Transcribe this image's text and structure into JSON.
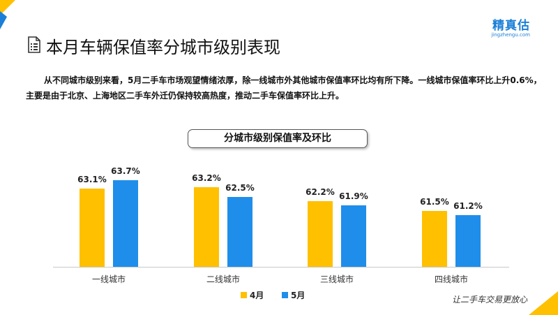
{
  "logo": {
    "main": "精真估",
    "sub": "jingzhengu.com"
  },
  "page_title": "本月车辆保值率分城市级别表现",
  "description": "从不同城市级别来看，5月二手车市场观望情绪浓厚，除一线城市外其他城市保值率环比均有所下降。一线城市保值率环比上升0.6%，主要是由于北京、上海地区二手车外迁仍保持较高热度，推动二手车保值率环比上升。",
  "slogan": "让二手车交易更放心",
  "colors": {
    "april": "#FFC000",
    "may": "#1F8EEA",
    "accent_blue": "#1a7fd8",
    "accent_yellow": "#FFC000"
  },
  "chart_data": {
    "type": "bar",
    "title": "分城市级别保值率及环比",
    "categories": [
      "一线城市",
      "二线城市",
      "三线城市",
      "四线城市"
    ],
    "series": [
      {
        "name": "4月",
        "values": [
          63.1,
          63.2,
          62.2,
          61.5
        ],
        "labels": [
          "63.1%",
          "63.2%",
          "62.2%",
          "61.5%"
        ]
      },
      {
        "name": "5月",
        "values": [
          63.7,
          62.5,
          61.9,
          61.2
        ],
        "labels": [
          "63.7%",
          "62.5%",
          "61.9%",
          "61.2%"
        ]
      }
    ],
    "ylim": [
      57.5,
      64.5
    ],
    "legend_position": "bottom",
    "grid": false,
    "xlabel": "",
    "ylabel": ""
  }
}
